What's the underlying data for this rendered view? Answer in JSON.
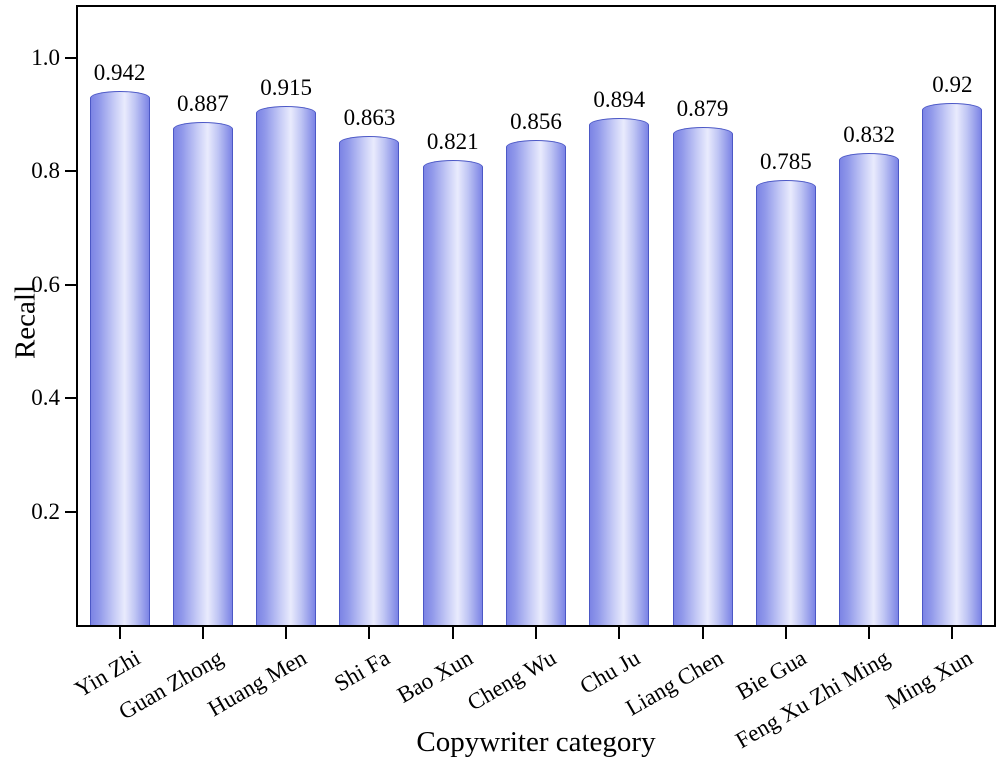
{
  "chart_data": {
    "type": "bar",
    "title": "",
    "xlabel": "Copywriter category",
    "ylabel": "Recall",
    "categories": [
      "Yin Zhi",
      "Guan Zhong",
      "Huang Men",
      "Shi Fa",
      "Bao Xun",
      "Cheng Wu",
      "Chu Ju",
      "Liang Chen",
      "Bie Gua",
      "Feng Xu Zhi Ming",
      "Ming Xun"
    ],
    "values": [
      0.942,
      0.887,
      0.915,
      0.863,
      0.821,
      0.856,
      0.894,
      0.879,
      0.785,
      0.832,
      0.92
    ],
    "value_labels": [
      "0.942",
      "0.887",
      "0.915",
      "0.863",
      "0.821",
      "0.856",
      "0.894",
      "0.879",
      "0.785",
      "0.832",
      "0.92"
    ],
    "ylim": [
      0,
      1.09
    ],
    "yticks": [
      0.2,
      0.4,
      0.6,
      0.8,
      1.0
    ],
    "ytick_labels": [
      "0.2",
      "0.4",
      "0.6",
      "0.8",
      "1.0"
    ],
    "grid": false,
    "legend_position": "none",
    "colors": {
      "bar_edge": "#4c58c6",
      "bar_gradient_edge": "#7c84e5",
      "bar_gradient_center": "#e9ebfd",
      "axis": "#000000",
      "text": "#000000",
      "background": "#ffffff"
    }
  }
}
